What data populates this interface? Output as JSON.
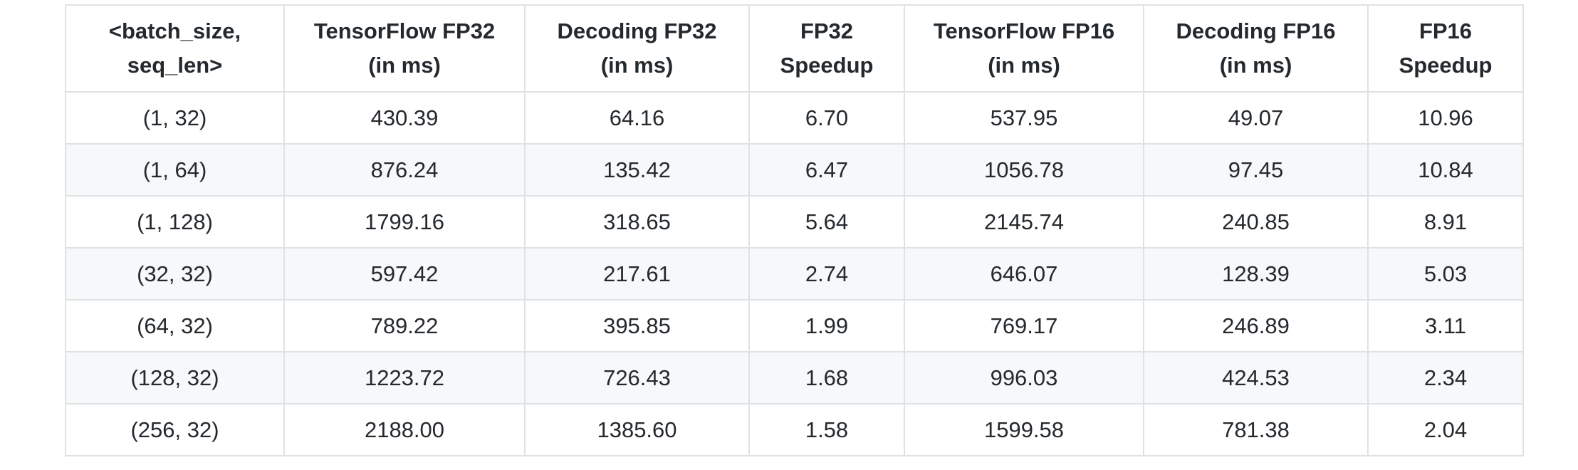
{
  "table": {
    "headers": [
      [
        "<batch_size,",
        "seq_len>"
      ],
      [
        "TensorFlow FP32",
        "(in ms)"
      ],
      [
        "Decoding FP32",
        "(in ms)"
      ],
      [
        "FP32",
        "Speedup"
      ],
      [
        "TensorFlow FP16",
        "(in ms)"
      ],
      [
        "Decoding FP16",
        "(in ms)"
      ],
      [
        "FP16",
        "Speedup"
      ]
    ],
    "rows": [
      [
        "(1, 32)",
        "430.39",
        "64.16",
        "6.70",
        "537.95",
        "49.07",
        "10.96"
      ],
      [
        "(1, 64)",
        "876.24",
        "135.42",
        "6.47",
        "1056.78",
        "97.45",
        "10.84"
      ],
      [
        "(1, 128)",
        "1799.16",
        "318.65",
        "5.64",
        "2145.74",
        "240.85",
        "8.91"
      ],
      [
        "(32, 32)",
        "597.42",
        "217.61",
        "2.74",
        "646.07",
        "128.39",
        "5.03"
      ],
      [
        "(64, 32)",
        "789.22",
        "395.85",
        "1.99",
        "769.17",
        "246.89",
        "3.11"
      ],
      [
        "(128, 32)",
        "1223.72",
        "726.43",
        "1.68",
        "996.03",
        "424.53",
        "2.34"
      ],
      [
        "(256, 32)",
        "2188.00",
        "1385.60",
        "1.58",
        "1599.58",
        "781.38",
        "2.04"
      ]
    ]
  },
  "colors": {
    "border": "#dfe2e5",
    "stripe": "#f6f8fa",
    "text": "#24292e"
  }
}
